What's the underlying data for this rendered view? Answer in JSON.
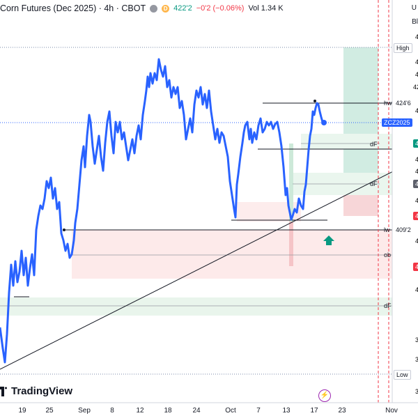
{
  "header": {
    "symbol": "Corn Futures (Dec 2025) · 4h · CBOT",
    "badge": "D",
    "price": "422'2",
    "change": "−0'2 (−0.06%)",
    "volume": "Vol 1.34 K"
  },
  "top_right_fragments": [
    "U",
    "Bl"
  ],
  "logo": {
    "text": "TradingView"
  },
  "price_labels": {
    "high": "High",
    "low": "Low",
    "ticker": "ZCZ2025",
    "hw": "hw",
    "hw_value": "424'6",
    "lw": "lw",
    "lw_value": "409'2",
    "df": "dF",
    "ob": "ob"
  },
  "x_axis_ticks": [
    "19",
    "25",
    "Sep",
    "8",
    "12",
    "18",
    "24",
    "Oct",
    "7",
    "13",
    "17",
    "23",
    "Nov"
  ],
  "right_axis_fragments": [
    "4",
    "4",
    "4",
    "42",
    "4",
    "4",
    "4",
    "4",
    "4",
    "4",
    "4",
    "4",
    "4",
    "4",
    "3",
    "3",
    "3"
  ],
  "colors": {
    "price_line": "#2962ff",
    "trend_line": "#131722",
    "demand_zone": "#e8f5e9",
    "supply_zone": "#fde8e8",
    "long_target": "#d1ece2",
    "long_stop": "#f7d6d8",
    "up_arrow": "#089981",
    "ticker_label": "#2962ff"
  }
}
